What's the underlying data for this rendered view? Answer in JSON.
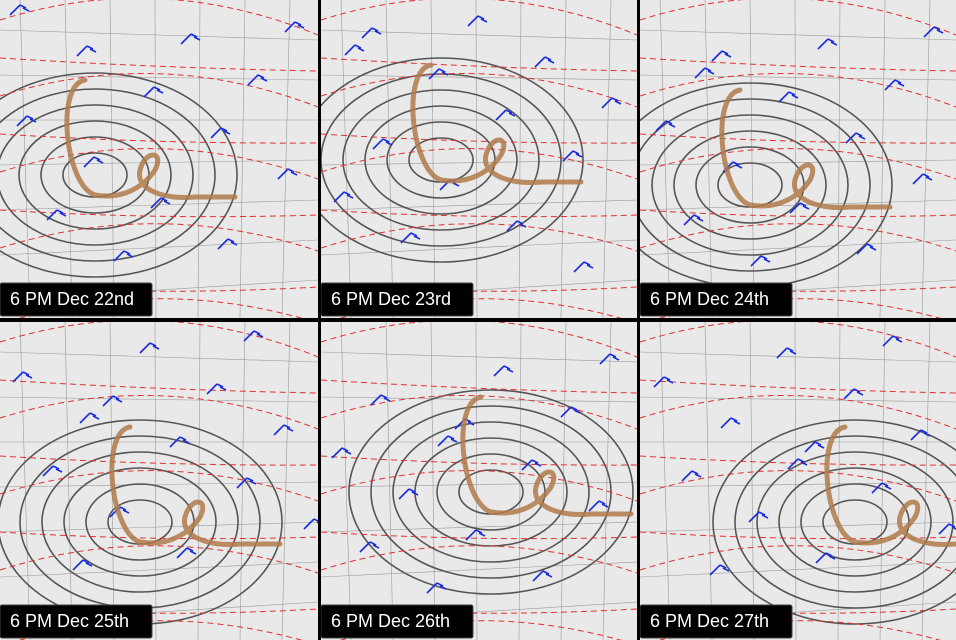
{
  "panels": [
    {
      "label": "6 PM Dec 22nd"
    },
    {
      "label": "6 PM Dec 23rd"
    },
    {
      "label": "6 PM Dec 24th"
    },
    {
      "label": "6 PM Dec 25th"
    },
    {
      "label": "6 PM Dec 26th"
    },
    {
      "label": "6 PM Dec 27th"
    }
  ]
}
